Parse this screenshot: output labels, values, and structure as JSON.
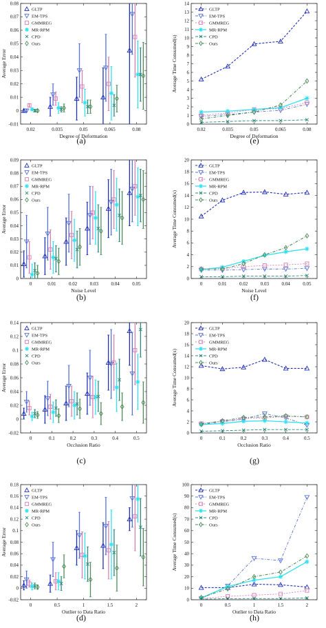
{
  "colors": {
    "GLTP": "#1f2fb8",
    "EM-TPS": "#5570d6",
    "GMMREG": "#d77fb2",
    "MR-RPM": "#2fe0f2",
    "CPD": "#2a8a7a",
    "Ours": "#4f8c5a"
  },
  "legend": [
    "GLTP",
    "EM-TPS",
    "GMMREG",
    "MR-RPM",
    "CPD",
    "Ours"
  ],
  "chart_data": [
    {
      "type": "scatter",
      "label": "(a)",
      "xlabel": "Degree of Deformation",
      "ylabel": "Average Error",
      "categories": [
        "0.02",
        "0.035",
        "0.05",
        "0.065",
        "0.08"
      ],
      "ylim": [
        -0.01,
        0.08
      ],
      "yticks": [
        "-0.01",
        "0",
        "0.01",
        "0.02",
        "0.03",
        "0.04",
        "0.05",
        "0.06",
        "0.07",
        "0.08"
      ],
      "series": [
        {
          "name": "GLTP",
          "values": [
            0.0,
            0.003,
            0.009,
            0.01,
            0.045
          ],
          "err": [
            0.001,
            0.007,
            0.016,
            0.022,
            0.07
          ],
          "marker": "tri-up"
        },
        {
          "name": "EM-TPS",
          "values": [
            0.0,
            0.012,
            0.03,
            0.032,
            0.072
          ],
          "err": [
            0.001,
            0.008,
            0.02,
            0.025,
            0.03
          ],
          "marker": "tri-down"
        },
        {
          "name": "GMMREG",
          "values": [
            0.004,
            0.009,
            0.018,
            0.02,
            0.055
          ],
          "err": [
            0.001,
            0.005,
            0.012,
            0.02,
            0.03
          ],
          "marker": "square"
        },
        {
          "name": "MR-RPM",
          "values": [
            0.001,
            0.002,
            0.006,
            0.013,
            0.027
          ],
          "err": [
            0.001,
            0.004,
            0.01,
            0.02,
            0.025
          ],
          "marker": "star"
        },
        {
          "name": "CPD",
          "values": [
            0.0,
            0.001,
            0.003,
            0.004,
            0.027
          ],
          "err": [
            0.001,
            0.002,
            0.005,
            0.008,
            0.02
          ],
          "marker": "x"
        },
        {
          "name": "Ours",
          "values": [
            0.0,
            0.002,
            0.003,
            0.009,
            0.026
          ],
          "err": [
            0.001,
            0.003,
            0.005,
            0.01,
            0.025
          ],
          "marker": "diamond"
        }
      ]
    },
    {
      "type": "line",
      "label": "(e)",
      "xlabel": "Degree of Deformation",
      "ylabel": "Average Time Consumed(s)",
      "categories": [
        "0.02",
        "0.035",
        "0.05",
        "0.065",
        "0.08"
      ],
      "ylim": [
        0,
        14
      ],
      "yticks": [
        "0",
        "1",
        "2",
        "3",
        "4",
        "5",
        "6",
        "7",
        "8",
        "9",
        "10",
        "11",
        "12",
        "13",
        "14"
      ],
      "series": [
        {
          "name": "GLTP",
          "values": [
            5.2,
            6.7,
            9.3,
            9.6,
            13.1
          ],
          "marker": "tri-up"
        },
        {
          "name": "EM-TPS",
          "values": [
            0.9,
            1.1,
            1.4,
            1.6,
            2.3
          ],
          "marker": "tri-down"
        },
        {
          "name": "GMMREG",
          "values": [
            1.0,
            1.3,
            1.7,
            1.8,
            2.5
          ],
          "marker": "square"
        },
        {
          "name": "MR-RPM",
          "values": [
            1.4,
            1.5,
            1.7,
            1.9,
            3.0
          ],
          "marker": "star"
        },
        {
          "name": "CPD",
          "values": [
            0.2,
            0.3,
            0.4,
            0.4,
            0.5
          ],
          "marker": "x"
        },
        {
          "name": "Ours",
          "values": [
            0.6,
            1.0,
            1.4,
            2.2,
            5.0
          ],
          "marker": "diamond"
        }
      ]
    },
    {
      "type": "scatter",
      "label": "(b)",
      "xlabel": "Noise Level",
      "ylabel": "Average Error",
      "categories": [
        "0",
        "0.01",
        "0.02",
        "0.03",
        "0.04",
        "0.05"
      ],
      "ylim": [
        0,
        0.09
      ],
      "yticks": [
        "0",
        "0.01",
        "0.02",
        "0.03",
        "0.04",
        "0.05",
        "0.06",
        "0.07",
        "0.08",
        "0.09"
      ],
      "series": [
        {
          "name": "GLTP",
          "values": [
            0.011,
            0.017,
            0.028,
            0.038,
            0.053,
            0.065
          ],
          "err": [
            0.01,
            0.014,
            0.018,
            0.02,
            0.022,
            0.025
          ],
          "marker": "tri-up"
        },
        {
          "name": "EM-TPS",
          "values": [
            0.028,
            0.034,
            0.042,
            0.048,
            0.058,
            0.068
          ],
          "err": [
            0.02,
            0.02,
            0.022,
            0.022,
            0.025,
            0.025
          ],
          "marker": "tri-down"
        },
        {
          "name": "GMMREG",
          "values": [
            0.016,
            0.022,
            0.033,
            0.05,
            0.06,
            0.07
          ],
          "err": [
            0.012,
            0.015,
            0.018,
            0.02,
            0.022,
            0.022
          ],
          "marker": "square"
        },
        {
          "name": "MR-RPM",
          "values": [
            0.003,
            0.016,
            0.029,
            0.046,
            0.056,
            0.062
          ],
          "err": [
            0.008,
            0.012,
            0.016,
            0.02,
            0.02,
            0.022
          ],
          "marker": "star"
        },
        {
          "name": "CPD",
          "values": [
            0.006,
            0.015,
            0.022,
            0.038,
            0.048,
            0.063
          ],
          "err": [
            0.006,
            0.01,
            0.014,
            0.018,
            0.02,
            0.02
          ],
          "marker": "x"
        },
        {
          "name": "Ours",
          "values": [
            0.004,
            0.013,
            0.024,
            0.036,
            0.046,
            0.06
          ],
          "err": [
            0.006,
            0.01,
            0.014,
            0.018,
            0.02,
            0.022
          ],
          "marker": "diamond"
        }
      ]
    },
    {
      "type": "line",
      "label": "(f)",
      "xlabel": "Noise Level",
      "ylabel": "Average Time Consumed(s)",
      "categories": [
        "0",
        "0.01",
        "0.02",
        "0.03",
        "0.04",
        "0.05"
      ],
      "ylim": [
        0,
        20
      ],
      "yticks": [
        "0",
        "2",
        "4",
        "6",
        "8",
        "10",
        "12",
        "14",
        "16",
        "18",
        "20"
      ],
      "series": [
        {
          "name": "GLTP",
          "values": [
            10.5,
            13.2,
            14.5,
            14.6,
            14.2,
            14.5
          ],
          "marker": "tri-up"
        },
        {
          "name": "EM-TPS",
          "values": [
            1.4,
            1.4,
            1.5,
            1.6,
            1.6,
            1.7
          ],
          "marker": "tri-down"
        },
        {
          "name": "GMMREG",
          "values": [
            1.6,
            1.7,
            2.0,
            2.2,
            2.3,
            2.5
          ],
          "marker": "square"
        },
        {
          "name": "MR-RPM",
          "values": [
            1.5,
            1.9,
            2.9,
            3.9,
            4.5,
            5.0
          ],
          "marker": "star"
        },
        {
          "name": "CPD",
          "values": [
            0.3,
            0.3,
            0.4,
            0.4,
            0.4,
            0.5
          ],
          "marker": "x"
        },
        {
          "name": "Ours",
          "values": [
            1.6,
            1.6,
            2.5,
            4.0,
            5.2,
            7.2
          ],
          "marker": "diamond"
        }
      ]
    },
    {
      "type": "scatter",
      "label": "(c)",
      "xlabel": "Occlusion Ratio",
      "ylabel": "Average Error",
      "categories": [
        "0",
        "0.1",
        "0.2",
        "0.3",
        "0.4",
        "0.5"
      ],
      "ylim": [
        -0.02,
        0.14
      ],
      "yticks": [
        "-0.02",
        "0",
        "0.02",
        "0.04",
        "0.06",
        "0.08",
        "0.1",
        "0.12",
        "0.14"
      ],
      "series": [
        {
          "name": "GLTP",
          "values": [
            0.008,
            0.014,
            0.023,
            0.037,
            0.082,
            0.128
          ],
          "err": [
            0.008,
            0.02,
            0.025,
            0.03,
            0.04,
            0.05
          ],
          "marker": "tri-up"
        },
        {
          "name": "EM-TPS",
          "values": [
            0.025,
            0.03,
            0.048,
            0.06,
            0.08,
            0.066
          ],
          "err": [
            0.015,
            0.025,
            0.03,
            0.04,
            0.05,
            0.06
          ],
          "marker": "tri-down"
        },
        {
          "name": "GMMREG",
          "values": [
            0.016,
            0.018,
            0.026,
            0.032,
            0.082,
            0.1
          ],
          "err": [
            0.01,
            0.018,
            0.022,
            0.03,
            0.04,
            0.05
          ],
          "marker": "square"
        },
        {
          "name": "MR-RPM",
          "values": [
            0.004,
            0.01,
            0.02,
            0.032,
            0.046,
            0.054
          ],
          "err": [
            0.006,
            0.015,
            0.02,
            0.025,
            0.035,
            0.04
          ],
          "marker": "star"
        },
        {
          "name": "CPD",
          "values": [
            0.008,
            0.016,
            0.022,
            0.033,
            0.057,
            0.13
          ],
          "err": [
            0.006,
            0.012,
            0.016,
            0.022,
            0.03,
            0.04
          ],
          "marker": "x"
        },
        {
          "name": "Ours",
          "values": [
            0.006,
            0.005,
            0.015,
            0.008,
            0.018,
            0.024
          ],
          "err": [
            0.005,
            0.01,
            0.014,
            0.016,
            0.02,
            0.03
          ],
          "marker": "diamond"
        }
      ]
    },
    {
      "type": "line",
      "label": "(g)",
      "xlabel": "Occlusion Ratio",
      "ylabel": "Average Time Consumed(s)",
      "categories": [
        "0",
        "0.1",
        "0.2",
        "0.3",
        "0.4",
        "0.5"
      ],
      "ylim": [
        0,
        20
      ],
      "yticks": [
        "0",
        "2",
        "4",
        "6",
        "8",
        "10",
        "12",
        "14",
        "16",
        "18",
        "20"
      ],
      "series": [
        {
          "name": "GLTP",
          "values": [
            12.2,
            11.6,
            11.9,
            13.3,
            11.7,
            11.7
          ],
          "marker": "tri-up"
        },
        {
          "name": "EM-TPS",
          "values": [
            1.5,
            2.0,
            2.5,
            3.5,
            2.7,
            1.4
          ],
          "marker": "tri-down"
        },
        {
          "name": "GMMREG",
          "values": [
            1.7,
            2.1,
            2.6,
            2.7,
            3.0,
            2.9
          ],
          "marker": "square"
        },
        {
          "name": "MR-RPM",
          "values": [
            1.5,
            1.7,
            2.1,
            2.2,
            2.0,
            1.8
          ],
          "marker": "star"
        },
        {
          "name": "CPD",
          "values": [
            0.3,
            0.4,
            0.5,
            0.6,
            0.6,
            0.6
          ],
          "marker": "x"
        },
        {
          "name": "Ours",
          "values": [
            1.6,
            2.2,
            2.8,
            2.9,
            3.1,
            2.9
          ],
          "marker": "diamond"
        }
      ]
    },
    {
      "type": "scatter",
      "label": "(d)",
      "xlabel": "Outlier to Data Ratio",
      "ylabel": "Average Error",
      "categories": [
        "0",
        "0.5",
        "1",
        "1.5",
        "2"
      ],
      "ylim": [
        -0.02,
        0.18
      ],
      "yticks": [
        "-0.02",
        "0",
        "0.02",
        "0.04",
        "0.06",
        "0.08",
        "0.1",
        "0.12",
        "0.14",
        "0.16",
        "0.18"
      ],
      "series": [
        {
          "name": "GLTP",
          "values": [
            0.005,
            0.008,
            0.07,
            0.074,
            0.12
          ],
          "err": [
            0.008,
            0.015,
            0.03,
            0.04,
            0.02
          ],
          "marker": "tri-up"
        },
        {
          "name": "EM-TPS",
          "values": [
            0.015,
            0.05,
            0.092,
            0.108,
            0.156
          ],
          "err": [
            0.015,
            0.03,
            0.04,
            0.05,
            0.05
          ],
          "marker": "tri-down"
        },
        {
          "name": "GMMREG",
          "values": [
            0.008,
            0.012,
            0.058,
            0.066,
            0.125
          ],
          "err": [
            0.006,
            0.015,
            0.04,
            0.05,
            0.06
          ],
          "marker": "square"
        },
        {
          "name": "MR-RPM",
          "values": [
            0.003,
            0.012,
            0.056,
            0.076,
            0.155
          ],
          "err": [
            0.006,
            0.015,
            0.04,
            0.06,
            0.04
          ],
          "marker": "star"
        },
        {
          "name": "CPD",
          "values": [
            0.004,
            0.008,
            0.042,
            0.062,
            0.106
          ],
          "err": [
            0.005,
            0.012,
            0.03,
            0.04,
            0.05
          ],
          "marker": "x"
        },
        {
          "name": "Ours",
          "values": [
            0.002,
            0.038,
            0.015,
            0.035,
            0.054
          ],
          "err": [
            0.004,
            0.02,
            0.03,
            0.04,
            0.05
          ],
          "marker": "diamond"
        }
      ]
    },
    {
      "type": "line",
      "label": "(h)",
      "xlabel": "Outlier to Data Ratio",
      "ylabel": "Average Time Consumed(s)",
      "categories": [
        "0",
        "0.5",
        "1",
        "1.5",
        "2"
      ],
      "ylim": [
        0,
        100
      ],
      "yticks": [
        "0",
        "10",
        "20",
        "30",
        "40",
        "50",
        "60",
        "70",
        "80",
        "90",
        "100"
      ],
      "series": [
        {
          "name": "GLTP",
          "values": [
            10.5,
            10.5,
            13.5,
            13.0,
            11.0
          ],
          "marker": "tri-up"
        },
        {
          "name": "EM-TPS",
          "values": [
            1.0,
            12.0,
            36.0,
            34.0,
            89.0
          ],
          "marker": "tri-down"
        },
        {
          "name": "GMMREG",
          "values": [
            1.0,
            3.0,
            4.0,
            5.0,
            8.0
          ],
          "marker": "square"
        },
        {
          "name": "MR-RPM",
          "values": [
            1.5,
            11.5,
            17.0,
            20.0,
            33.0
          ],
          "marker": "star"
        },
        {
          "name": "CPD",
          "values": [
            0.5,
            1.0,
            1.0,
            1.0,
            1.5
          ],
          "marker": "x"
        },
        {
          "name": "Ours",
          "values": [
            2.0,
            9.5,
            20.0,
            24.0,
            38.0
          ],
          "marker": "diamond"
        }
      ]
    }
  ]
}
